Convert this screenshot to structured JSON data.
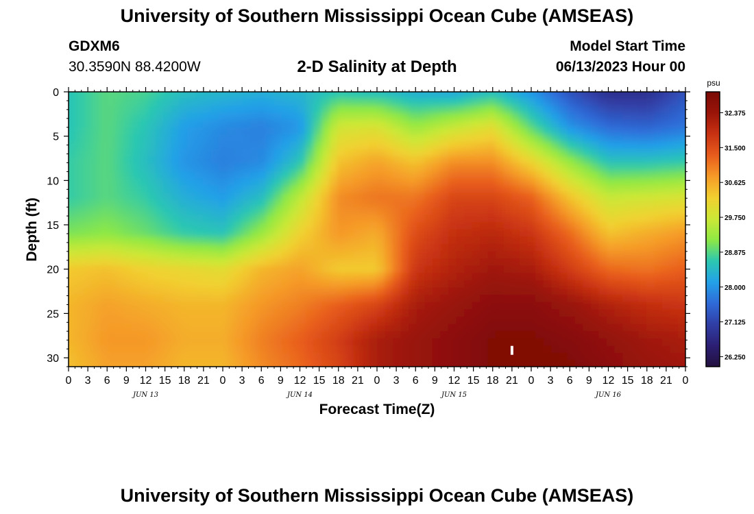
{
  "header": {
    "title": "University of Southern Mississippi Ocean Cube (AMSEAS)",
    "station_id": "GDXM6",
    "station_coords": "30.3590N  88.4200W",
    "plot_title": "2-D Salinity at Depth",
    "start_label": "Model Start Time",
    "start_value": "06/13/2023 Hour 00"
  },
  "footer": {
    "title": "University of Southern Mississippi Ocean Cube (AMSEAS)"
  },
  "chart_data": {
    "type": "heatmap",
    "title": "2-D Salinity at Depth",
    "xlabel": "Forecast Time(Z)",
    "ylabel": "Depth (ft)",
    "x_range_hours": [
      0,
      96
    ],
    "x_tick_labels": [
      "0",
      "3",
      "6",
      "9",
      "12",
      "15",
      "18",
      "21",
      "0",
      "3",
      "6",
      "9",
      "12",
      "15",
      "18",
      "21",
      "0",
      "3",
      "6",
      "9",
      "12",
      "15",
      "18",
      "21",
      "0",
      "3",
      "6",
      "9",
      "12",
      "15",
      "18",
      "21",
      "0"
    ],
    "date_labels": [
      {
        "label": "JUN 13",
        "hour": 12
      },
      {
        "label": "JUN 14",
        "hour": 36
      },
      {
        "label": "JUN 15",
        "hour": 60
      },
      {
        "label": "JUN 16",
        "hour": 84
      }
    ],
    "y_range_ft": [
      0,
      31
    ],
    "y_ticks": [
      0,
      5,
      10,
      15,
      20,
      25,
      30
    ],
    "colorbar": {
      "unit": "psu",
      "min": 26.0,
      "max": 32.9,
      "tick_labels": [
        "32.375",
        "31.500",
        "30.625",
        "29.750",
        "28.875",
        "28.000",
        "27.125",
        "26.250"
      ],
      "colormap": [
        "#23103e",
        "#2c1f74",
        "#303ea5",
        "#2f6bd8",
        "#23a1e8",
        "#2cc8b0",
        "#8ee844",
        "#cce836",
        "#f2d030",
        "#f59a28",
        "#e85c1c",
        "#c83212",
        "#9a1408",
        "#7a0a06"
      ]
    },
    "marker": {
      "hour": 69,
      "depth_ft": 29.2
    },
    "depth_levels_ft": [
      0,
      4,
      8,
      12,
      16,
      20,
      24,
      28,
      31
    ],
    "time_hours": [
      0,
      6,
      12,
      18,
      24,
      30,
      36,
      42,
      48,
      54,
      60,
      66,
      72,
      78,
      84,
      90,
      96
    ],
    "salinity_psu": [
      [
        28.6,
        28.9,
        28.8,
        28.5,
        28.4,
        28.3,
        28.4,
        28.6,
        28.5,
        28.3,
        28.2,
        28.5,
        28.0,
        27.3,
        26.8,
        26.8,
        27.3
      ],
      [
        28.6,
        28.9,
        28.6,
        28.1,
        27.9,
        27.8,
        28.0,
        29.8,
        29.9,
        29.3,
        29.7,
        30.0,
        28.9,
        28.0,
        27.6,
        27.5,
        27.7
      ],
      [
        28.7,
        28.9,
        28.5,
        28.0,
        27.8,
        27.9,
        28.6,
        30.4,
        30.7,
        30.4,
        30.9,
        30.9,
        30.2,
        29.3,
        28.6,
        28.6,
        28.7
      ],
      [
        28.7,
        28.9,
        28.7,
        28.3,
        28.1,
        28.5,
        29.6,
        30.9,
        31.1,
        31.1,
        31.6,
        31.6,
        31.3,
        30.4,
        29.7,
        29.8,
        29.9
      ],
      [
        29.1,
        29.2,
        29.0,
        28.7,
        28.6,
        29.3,
        30.2,
        30.8,
        30.6,
        31.5,
        31.9,
        32.0,
        31.8,
        31.2,
        30.4,
        30.6,
        30.8
      ],
      [
        30.3,
        30.4,
        30.2,
        30.1,
        30.0,
        30.5,
        30.7,
        30.3,
        30.3,
        31.8,
        32.1,
        32.3,
        32.2,
        31.7,
        31.2,
        31.1,
        31.3
      ],
      [
        30.5,
        30.7,
        30.6,
        30.5,
        30.5,
        30.8,
        31.0,
        31.3,
        31.6,
        32.2,
        32.4,
        32.6,
        32.6,
        32.4,
        32.1,
        31.9,
        31.8
      ],
      [
        30.5,
        30.8,
        30.8,
        30.6,
        30.6,
        31.0,
        31.3,
        31.7,
        32.2,
        32.4,
        32.6,
        32.8,
        32.8,
        32.7,
        32.5,
        32.3,
        32.2
      ],
      [
        30.4,
        30.7,
        30.7,
        30.5,
        30.5,
        30.9,
        31.2,
        31.6,
        32.2,
        32.4,
        32.6,
        32.8,
        32.8,
        32.8,
        32.6,
        32.4,
        32.3
      ]
    ]
  }
}
